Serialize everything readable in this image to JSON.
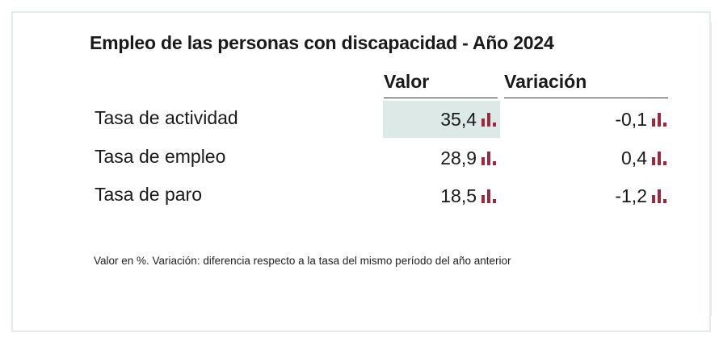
{
  "title": "Empleo de las personas con discapacidad - Año 2024",
  "columns": {
    "valor": "Valor",
    "variacion": "Variación"
  },
  "rows": [
    {
      "label": "Tasa de actividad",
      "valor": "35,4",
      "variacion": "-0,1",
      "icon": "bar-chart-icon"
    },
    {
      "label": "Tasa de empleo",
      "valor": "28,9",
      "variacion": "0,4",
      "icon": "bar-chart-icon"
    },
    {
      "label": "Tasa de paro",
      "valor": "18,5",
      "variacion": "-1,2",
      "icon": "bar-chart-icon"
    }
  ],
  "note": "Valor en %. Variación: diferencia respecto a la tasa del mismo período del año anterior",
  "colors": {
    "icon": "#9b2a3f",
    "highlight": "#dce9e6",
    "border": "#e3ece9"
  }
}
